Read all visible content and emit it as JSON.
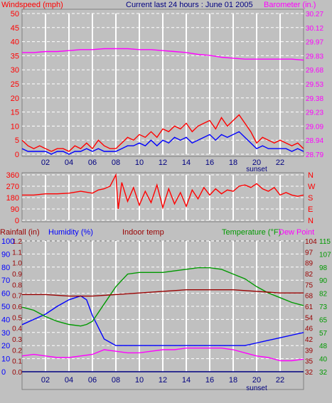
{
  "header": {
    "wind_label": "Windspeed (mph)",
    "title": "Current last 24 hours : June 01 2005",
    "baro_label": "Barometer (in.)"
  },
  "colors": {
    "background": "#c0c0c0",
    "plot": "#c0c0c0",
    "grid": "#ffffff",
    "red": "#ff0000",
    "darkred": "#990000",
    "blue": "#0000ff",
    "green": "#009900",
    "magenta": "#ff00ff",
    "navy": "#000080"
  },
  "chart_data": [
    {
      "id": "wind",
      "type": "line",
      "title": "Current last 24 hours : June 01 2005",
      "x_ticks": [
        "02",
        "04",
        "06",
        "08",
        "10",
        "12",
        "14",
        "16",
        "18",
        "20",
        "22"
      ],
      "x_extra_label": "sunset",
      "y_left_ticks": [
        0,
        5,
        10,
        15,
        20,
        25,
        30,
        35,
        40,
        45,
        50
      ],
      "y_left_label": "Windspeed (mph)",
      "ylim_left": [
        0,
        50
      ],
      "y_right_ticks": [
        "28.79",
        "28.94",
        "29.09",
        "29.23",
        "29.38",
        "29.53",
        "29.68",
        "29.83",
        "29.97",
        "30.12",
        "30.27"
      ],
      "y_right_label": "Barometer (in.)",
      "ylim_right": [
        28.79,
        30.27
      ],
      "x_range_hours": [
        0,
        24
      ],
      "grid": true,
      "series": [
        {
          "name": "gust",
          "color": "red",
          "axis": "left",
          "x": [
            0,
            0.5,
            1,
            1.5,
            2,
            2.5,
            3,
            3.5,
            4,
            4.5,
            5,
            5.5,
            6,
            6.5,
            7,
            7.5,
            8,
            8.5,
            9,
            9.5,
            10,
            10.5,
            11,
            11.5,
            12,
            12.5,
            13,
            13.5,
            14,
            14.5,
            15,
            15.5,
            16,
            16.5,
            17,
            17.5,
            18,
            18.5,
            19,
            19.5,
            20,
            20.5,
            21,
            21.5,
            22,
            22.5,
            23,
            23.5,
            24
          ],
          "y": [
            5,
            3,
            2,
            3,
            2,
            1,
            2,
            2,
            1,
            3,
            2,
            4,
            2,
            5,
            3,
            2,
            2,
            4,
            6,
            5,
            7,
            6,
            8,
            6,
            9,
            8,
            10,
            9,
            11,
            8,
            10,
            11,
            12,
            9,
            13,
            10,
            12,
            14,
            11,
            8,
            4,
            6,
            5,
            4,
            5,
            4,
            3,
            4,
            2
          ]
        },
        {
          "name": "average",
          "color": "blue",
          "axis": "left",
          "x": [
            0,
            0.5,
            1,
            1.5,
            2,
            2.5,
            3,
            3.5,
            4,
            4.5,
            5,
            5.5,
            6,
            6.5,
            7,
            7.5,
            8,
            8.5,
            9,
            9.5,
            10,
            10.5,
            11,
            11.5,
            12,
            12.5,
            13,
            13.5,
            14,
            14.5,
            15,
            15.5,
            16,
            16.5,
            17,
            17.5,
            18,
            18.5,
            19,
            19.5,
            20,
            20.5,
            21,
            21.5,
            22,
            22.5,
            23,
            23.5,
            24
          ],
          "y": [
            2,
            1,
            1,
            1,
            1,
            0,
            1,
            1,
            0,
            1,
            1,
            2,
            1,
            2,
            1,
            1,
            1,
            2,
            3,
            3,
            4,
            3,
            5,
            3,
            5,
            4,
            6,
            5,
            6,
            4,
            5,
            6,
            7,
            5,
            7,
            6,
            7,
            8,
            6,
            4,
            2,
            3,
            2,
            2,
            2,
            2,
            1,
            2,
            1
          ]
        },
        {
          "name": "barometer",
          "color": "magenta",
          "axis": "right",
          "x": [
            0,
            1,
            2,
            3,
            4,
            5,
            6,
            7,
            8,
            9,
            10,
            11,
            12,
            13,
            14,
            15,
            16,
            17,
            18,
            19,
            20,
            21,
            22,
            23,
            24
          ],
          "y": [
            29.86,
            29.86,
            29.87,
            29.87,
            29.88,
            29.89,
            29.89,
            29.9,
            29.9,
            29.9,
            29.89,
            29.89,
            29.88,
            29.87,
            29.86,
            29.84,
            29.83,
            29.81,
            29.8,
            29.79,
            29.79,
            29.79,
            29.79,
            29.79,
            29.78
          ]
        }
      ]
    },
    {
      "id": "direction",
      "type": "line",
      "x_ticks": [
        "02",
        "04",
        "06",
        "08",
        "10",
        "12",
        "14",
        "16",
        "18",
        "20",
        "22"
      ],
      "y_left_ticks": [
        0,
        90,
        180,
        270,
        360
      ],
      "ylim": [
        0,
        360
      ],
      "y_right_ticks": [
        "N",
        "W",
        "S",
        "E",
        "N"
      ],
      "x_range_hours": [
        0,
        24
      ],
      "grid": true,
      "series": [
        {
          "name": "direction",
          "color": "red",
          "x": [
            0,
            1,
            2,
            3,
            4,
            5,
            6,
            6.5,
            7,
            7.5,
            8,
            8.2,
            8.5,
            9,
            9.5,
            10,
            10.5,
            11,
            11.5,
            12,
            12.5,
            13,
            13.5,
            14,
            14.5,
            15,
            15.5,
            16,
            16.5,
            17,
            17.5,
            18,
            18.5,
            19,
            19.5,
            20,
            20.5,
            21,
            21.5,
            22,
            22.5,
            23,
            23.5,
            24
          ],
          "y": [
            200,
            200,
            210,
            210,
            215,
            230,
            215,
            240,
            250,
            270,
            360,
            90,
            300,
            150,
            260,
            120,
            230,
            140,
            280,
            100,
            250,
            130,
            220,
            110,
            240,
            170,
            260,
            200,
            250,
            210,
            240,
            230,
            270,
            280,
            260,
            290,
            250,
            230,
            260,
            200,
            220,
            200,
            190,
            200
          ]
        }
      ]
    },
    {
      "id": "temperature",
      "type": "line",
      "x_ticks": [
        "02",
        "04",
        "06",
        "08",
        "10",
        "12",
        "14",
        "16",
        "18",
        "20",
        "22"
      ],
      "x_extra_label": "sunset",
      "labels": [
        "Rainfall (in)",
        "Humidity (%)",
        "Indoor temp",
        "Temperature (°F)",
        "Dew Point"
      ],
      "y_rain_ticks": [
        "0.0",
        "0.1",
        "0.2",
        "0.3",
        "0.4",
        "0.5",
        "0.6",
        "0.7",
        "0.8",
        "0.9",
        "1.0",
        "1.1",
        "1.2"
      ],
      "y_humidity_ticks": [
        0,
        10,
        20,
        30,
        40,
        50,
        60,
        70,
        80,
        90,
        100
      ],
      "y_right_inner_ticks": [
        32,
        40,
        48,
        57,
        65,
        73,
        82,
        90,
        98,
        107,
        115
      ],
      "y_right_outer_ticks": [
        32,
        35,
        39,
        42,
        46,
        54,
        61,
        68,
        75,
        82,
        89,
        97,
        104
      ],
      "ylim_humidity": [
        0,
        100
      ],
      "ylim_temperature": [
        32,
        115
      ],
      "x_range_hours": [
        0,
        24
      ],
      "grid": true,
      "series": [
        {
          "name": "Humidity (%)",
          "color": "blue",
          "axis": "humidity",
          "x": [
            0,
            1,
            2,
            3,
            4,
            5,
            5.5,
            6,
            7,
            8,
            9,
            10,
            11,
            12,
            13,
            14,
            15,
            16,
            17,
            18,
            19,
            20,
            21,
            22,
            23,
            24
          ],
          "y": [
            36,
            40,
            44,
            50,
            55,
            58,
            55,
            43,
            25,
            20,
            20,
            20,
            20,
            20,
            20,
            20,
            20,
            20,
            20,
            20,
            20,
            22,
            24,
            26,
            28,
            30
          ]
        },
        {
          "name": "Temperature (°F)",
          "color": "green",
          "axis": "temperature",
          "x": [
            0,
            1,
            2,
            3,
            4,
            5,
            5.5,
            6,
            7,
            8,
            9,
            10,
            11,
            12,
            13,
            14,
            15,
            16,
            17,
            18,
            19,
            20,
            21,
            22,
            23,
            24
          ],
          "y": [
            73,
            71,
            67,
            64,
            62,
            61,
            62,
            64,
            75,
            86,
            94,
            95,
            95,
            95,
            96,
            97,
            98,
            98,
            97,
            94,
            91,
            86,
            82,
            79,
            76,
            74
          ]
        },
        {
          "name": "Indoor temp",
          "color": "darkred",
          "axis": "temperature",
          "x": [
            0,
            2,
            4,
            6,
            8,
            10,
            12,
            14,
            16,
            18,
            20,
            22,
            24
          ],
          "y": [
            81,
            81,
            80,
            80,
            81,
            82,
            83,
            84,
            84,
            84,
            83,
            82,
            82
          ]
        },
        {
          "name": "Dew Point",
          "color": "magenta",
          "axis": "temperature",
          "x": [
            0,
            1,
            2,
            3,
            4,
            5,
            6,
            7,
            8,
            9,
            10,
            11,
            12,
            13,
            14,
            15,
            16,
            17,
            18,
            19,
            20,
            21,
            22,
            23,
            24
          ],
          "y": [
            42,
            43,
            42,
            41,
            41,
            42,
            43,
            46,
            45,
            44,
            44,
            45,
            46,
            46,
            47,
            47,
            47,
            47,
            46,
            44,
            42,
            41,
            39,
            39,
            40
          ]
        },
        {
          "name": "Rainfall (in)",
          "color": "navy",
          "axis": "humidity",
          "x": [
            0,
            24
          ],
          "y": [
            0,
            0
          ]
        }
      ]
    }
  ]
}
